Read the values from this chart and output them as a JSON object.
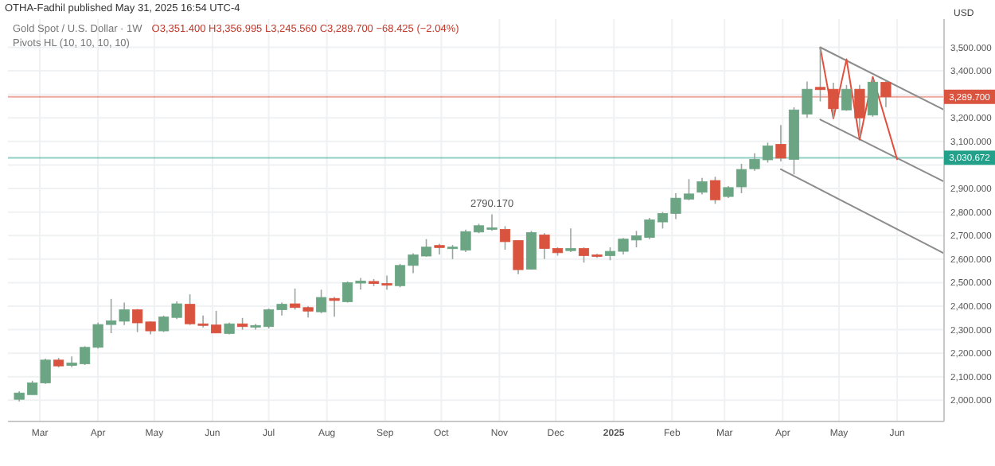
{
  "chart_data": {
    "type": "candlestick",
    "title": "Gold Spot / U.S. Dollar · 1W",
    "subtitle": "O3,351.400 H3,356.995 L3,245.560 C3,289.700 −68.425 (−2.04%)",
    "ylabel": "USD",
    "annotations": [
      "OTHA-Fadhil published May 31, 2025 16:54 UTC-4",
      "Pivots HL (10, 10, 10, 10)",
      {
        "text": "2790.170",
        "x": "2024-10-28",
        "y": 2790.17
      }
    ],
    "x": [
      "2024-02-19",
      "2024-02-26",
      "2024-03-04",
      "2024-03-11",
      "2024-03-18",
      "2024-03-25",
      "2024-04-01",
      "2024-04-08",
      "2024-04-15",
      "2024-04-22",
      "2024-04-29",
      "2024-05-06",
      "2024-05-13",
      "2024-05-20",
      "2024-05-27",
      "2024-06-03",
      "2024-06-10",
      "2024-06-17",
      "2024-06-24",
      "2024-07-01",
      "2024-07-08",
      "2024-07-15",
      "2024-07-22",
      "2024-07-29",
      "2024-08-05",
      "2024-08-12",
      "2024-08-19",
      "2024-08-26",
      "2024-09-02",
      "2024-09-09",
      "2024-09-16",
      "2024-09-23",
      "2024-09-30",
      "2024-10-07",
      "2024-10-14",
      "2024-10-21",
      "2024-10-28",
      "2024-11-04",
      "2024-11-11",
      "2024-11-18",
      "2024-11-25",
      "2024-12-02",
      "2024-12-09",
      "2024-12-16",
      "2024-12-23",
      "2024-12-30",
      "2025-01-06",
      "2025-01-13",
      "2025-01-20",
      "2025-01-27",
      "2025-02-03",
      "2025-02-10",
      "2025-02-17",
      "2025-02-24",
      "2025-03-03",
      "2025-03-10",
      "2025-03-17",
      "2025-03-24",
      "2025-03-31",
      "2025-04-07",
      "2025-04-14",
      "2025-04-21",
      "2025-04-28",
      "2025-05-05",
      "2025-05-12",
      "2025-05-19",
      "2025-05-26"
    ],
    "ohlc": [
      [
        2004,
        2038,
        1995,
        2031
      ],
      [
        2024,
        2083,
        2024,
        2074
      ],
      [
        2074,
        2177,
        2070,
        2171
      ],
      [
        2171,
        2180,
        2140,
        2146
      ],
      [
        2148,
        2186,
        2141,
        2159
      ],
      [
        2155,
        2230,
        2150,
        2225
      ],
      [
        2225,
        2330,
        2220,
        2322
      ],
      [
        2322,
        2431,
        2285,
        2338
      ],
      [
        2336,
        2415,
        2320,
        2385
      ],
      [
        2385,
        2388,
        2290,
        2329
      ],
      [
        2333,
        2336,
        2280,
        2295
      ],
      [
        2295,
        2360,
        2290,
        2354
      ],
      [
        2352,
        2420,
        2345,
        2410
      ],
      [
        2408,
        2450,
        2320,
        2325
      ],
      [
        2325,
        2360,
        2310,
        2318
      ],
      [
        2320,
        2380,
        2285,
        2286
      ],
      [
        2284,
        2330,
        2280,
        2325
      ],
      [
        2325,
        2350,
        2300,
        2313
      ],
      [
        2311,
        2325,
        2300,
        2318
      ],
      [
        2313,
        2390,
        2305,
        2385
      ],
      [
        2385,
        2415,
        2360,
        2408
      ],
      [
        2410,
        2475,
        2385,
        2394
      ],
      [
        2394,
        2400,
        2352,
        2379
      ],
      [
        2376,
        2470,
        2370,
        2437
      ],
      [
        2433,
        2440,
        2355,
        2424
      ],
      [
        2419,
        2505,
        2415,
        2500
      ],
      [
        2498,
        2520,
        2470,
        2507
      ],
      [
        2505,
        2515,
        2485,
        2496
      ],
      [
        2496,
        2530,
        2470,
        2489
      ],
      [
        2487,
        2580,
        2480,
        2573
      ],
      [
        2573,
        2625,
        2540,
        2618
      ],
      [
        2613,
        2685,
        2610,
        2651
      ],
      [
        2658,
        2665,
        2620,
        2649
      ],
      [
        2645,
        2660,
        2600,
        2651
      ],
      [
        2638,
        2725,
        2630,
        2717
      ],
      [
        2715,
        2750,
        2710,
        2742
      ],
      [
        2728,
        2790.17,
        2720,
        2733
      ],
      [
        2726,
        2740,
        2640,
        2674
      ],
      [
        2679,
        2680,
        2536,
        2555
      ],
      [
        2557,
        2720,
        2555,
        2713
      ],
      [
        2703,
        2710,
        2600,
        2645
      ],
      [
        2645,
        2650,
        2615,
        2627
      ],
      [
        2636,
        2730,
        2630,
        2645
      ],
      [
        2645,
        2650,
        2585,
        2615
      ],
      [
        2618,
        2622,
        2605,
        2613
      ],
      [
        2615,
        2650,
        2595,
        2633
      ],
      [
        2633,
        2690,
        2620,
        2685
      ],
      [
        2681,
        2720,
        2650,
        2699
      ],
      [
        2692,
        2775,
        2685,
        2767
      ],
      [
        2758,
        2800,
        2730,
        2794
      ],
      [
        2794,
        2880,
        2770,
        2859
      ],
      [
        2855,
        2940,
        2850,
        2877
      ],
      [
        2884,
        2945,
        2875,
        2929
      ],
      [
        2934,
        2950,
        2835,
        2852
      ],
      [
        2866,
        2910,
        2860,
        2904
      ],
      [
        2907,
        3005,
        2880,
        2981
      ],
      [
        2984,
        3050,
        2975,
        3024
      ],
      [
        3022,
        3095,
        3010,
        3081
      ],
      [
        3088,
        3170,
        3015,
        3029
      ],
      [
        3024,
        3245,
        2960,
        3234
      ],
      [
        3216,
        3355,
        3200,
        3322
      ],
      [
        3330,
        3500,
        3270,
        3320
      ],
      [
        3322,
        3350,
        3200,
        3239
      ],
      [
        3234,
        3340,
        3230,
        3322
      ],
      [
        3322,
        3340,
        3120,
        3200
      ],
      [
        3212,
        3365,
        3205,
        3352
      ],
      [
        3351.4,
        3356.995,
        3245.56,
        3289.7
      ]
    ],
    "colors": [
      "#6ba583",
      "#6ba583",
      "#6ba583",
      "#d9533f",
      "#6ba583",
      "#6ba583",
      "#6ba583",
      "#6ba583",
      "#6ba583",
      "#d9533f",
      "#d9533f",
      "#6ba583",
      "#6ba583",
      "#d9533f",
      "#d9533f",
      "#d9533f",
      "#6ba583",
      "#d9533f",
      "#6ba583",
      "#6ba583",
      "#6ba583",
      "#d9533f",
      "#d9533f",
      "#6ba583",
      "#d9533f",
      "#6ba583",
      "#6ba583",
      "#d9533f",
      "#d9533f",
      "#6ba583",
      "#6ba583",
      "#6ba583",
      "#d9533f",
      "#6ba583",
      "#6ba583",
      "#6ba583",
      "#6ba583",
      "#d9533f",
      "#d9533f",
      "#6ba583",
      "#d9533f",
      "#d9533f",
      "#6ba583",
      "#d9533f",
      "#d9533f",
      "#6ba583",
      "#6ba583",
      "#6ba583",
      "#6ba583",
      "#6ba583",
      "#6ba583",
      "#6ba583",
      "#6ba583",
      "#d9533f",
      "#6ba583",
      "#6ba583",
      "#6ba583",
      "#6ba583",
      "#d9533f",
      "#6ba583",
      "#6ba583",
      "#d9533f",
      "#d9533f",
      "#6ba583",
      "#d9533f",
      "#6ba583",
      "#d9533f"
    ],
    "series": [
      {
        "type": "line",
        "x": [
          "2025-04-21",
          "2025-06-26"
        ],
        "values": [
          3500,
          3234
        ],
        "color": "#8c8c8c"
      },
      {
        "type": "line",
        "x": [
          "2025-04-21",
          "2025-06-26"
        ],
        "values": [
          3193,
          2929
        ],
        "color": "#8c8c8c"
      },
      {
        "type": "line",
        "x": [
          "2025-03-31",
          "2025-06-26"
        ],
        "values": [
          2982,
          2624
        ],
        "color": "#8c8c8c"
      },
      {
        "type": "line",
        "x": [
          "2025-04-21",
          "2025-04-28",
          "2025-05-05",
          "2025-05-12",
          "2025-05-19",
          "2025-06-01"
        ],
        "values": [
          3498,
          3198,
          3449,
          3108,
          3374,
          3024
        ],
        "color": "#e0513f"
      }
    ],
    "ref_lines": [
      {
        "axis": "y",
        "value": 3289.7,
        "label": "3,289.700",
        "color": "#d9533f"
      },
      {
        "axis": "y",
        "value": 3030.672,
        "label": "3,030.672",
        "color": "#22a08a"
      }
    ],
    "xlim": [
      "2024-02-13",
      "2025-06-26"
    ],
    "xticks": [
      {
        "value": "2024-03-01",
        "label": "Mar"
      },
      {
        "value": "2024-04-01",
        "label": "Apr"
      },
      {
        "value": "2024-05-01",
        "label": "May"
      },
      {
        "value": "2024-06-01",
        "label": "Jun"
      },
      {
        "value": "2024-07-01",
        "label": "Jul"
      },
      {
        "value": "2024-08-01",
        "label": "Aug"
      },
      {
        "value": "2024-09-01",
        "label": "Sep"
      },
      {
        "value": "2024-10-01",
        "label": "Oct"
      },
      {
        "value": "2024-11-01",
        "label": "Nov"
      },
      {
        "value": "2024-12-01",
        "label": "Dec"
      },
      {
        "value": "2025-01-01",
        "label": "2025"
      },
      {
        "value": "2025-02-01",
        "label": "Feb"
      },
      {
        "value": "2025-03-01",
        "label": "Mar"
      },
      {
        "value": "2025-04-01",
        "label": "Apr"
      },
      {
        "value": "2025-05-01",
        "label": "May"
      },
      {
        "value": "2025-06-01",
        "label": "Jun"
      }
    ],
    "ylim": [
      1910,
      3620
    ],
    "yticks": [
      {
        "value": 2000,
        "label": "2,000.000"
      },
      {
        "value": 2100,
        "label": "2,100.000"
      },
      {
        "value": 2200,
        "label": "2,200.000"
      },
      {
        "value": 2300,
        "label": "2,300.000"
      },
      {
        "value": 2400,
        "label": "2,400.000"
      },
      {
        "value": 2500,
        "label": "2,500.000"
      },
      {
        "value": 2600,
        "label": "2,600.000"
      },
      {
        "value": 2700,
        "label": "2,700.000"
      },
      {
        "value": 2800,
        "label": "2,800.000"
      },
      {
        "value": 2900,
        "label": "2,900.000"
      },
      {
        "value": 3000,
        "label": null
      },
      {
        "value": 3100,
        "label": "3,100.000"
      },
      {
        "value": 3200,
        "label": "3,200.000"
      },
      {
        "value": 3300,
        "label": null
      },
      {
        "value": 3400,
        "label": "3,400.000"
      },
      {
        "value": 3500,
        "label": "3,500.000"
      }
    ],
    "grid": true
  }
}
